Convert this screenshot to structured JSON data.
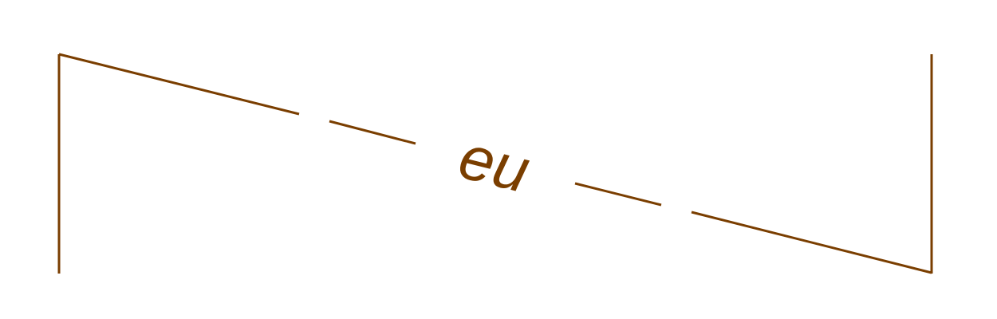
{
  "diagram": {
    "label": "eu"
  },
  "colors": {
    "line": "#7a3e00",
    "text": "#7a3e00",
    "background": "#ffffff"
  }
}
